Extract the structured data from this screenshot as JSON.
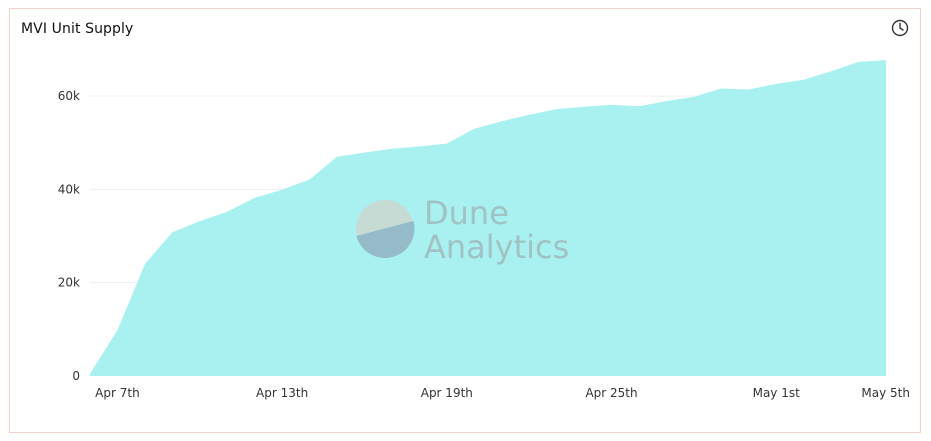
{
  "header": {
    "title": "MVI Unit Supply",
    "history_icon": "clock-icon"
  },
  "watermark": {
    "line1": "Dune",
    "line2": "Analytics"
  },
  "colors": {
    "area": "#a8f1f0",
    "border": "#f3d2c8",
    "grid": "#efefef"
  },
  "chart_data": {
    "type": "area",
    "title": "MVI Unit Supply",
    "xlabel": "",
    "ylabel": "",
    "grid": true,
    "legend": "none",
    "x": [
      "2021-04-06",
      "2021-04-07",
      "2021-04-08",
      "2021-04-09",
      "2021-04-10",
      "2021-04-11",
      "2021-04-12",
      "2021-04-13",
      "2021-04-14",
      "2021-04-15",
      "2021-04-16",
      "2021-04-17",
      "2021-04-18",
      "2021-04-19",
      "2021-04-20",
      "2021-04-21",
      "2021-04-22",
      "2021-04-23",
      "2021-04-24",
      "2021-04-25",
      "2021-04-26",
      "2021-04-27",
      "2021-04-28",
      "2021-04-29",
      "2021-04-30",
      "2021-05-01",
      "2021-05-02",
      "2021-05-03",
      "2021-05-04",
      "2021-05-05"
    ],
    "values": [
      500,
      9800,
      24000,
      30800,
      33200,
      35200,
      38200,
      39900,
      42100,
      47000,
      47900,
      48700,
      49200,
      49800,
      53000,
      54600,
      56000,
      57200,
      57700,
      58100,
      57800,
      58900,
      59800,
      61600,
      61400,
      62600,
      63500,
      65300,
      67300,
      67700
    ],
    "x_ticks": [
      {
        "label": "Apr 7th",
        "x": "2021-04-07"
      },
      {
        "label": "Apr 13th",
        "x": "2021-04-13"
      },
      {
        "label": "Apr 19th",
        "x": "2021-04-19"
      },
      {
        "label": "Apr 25th",
        "x": "2021-04-25"
      },
      {
        "label": "May 1st",
        "x": "2021-05-01"
      },
      {
        "label": "May 5th",
        "x": "2021-05-05"
      }
    ],
    "y_ticks": [
      {
        "label": "0",
        "value": 0
      },
      {
        "label": "20k",
        "value": 20000
      },
      {
        "label": "40k",
        "value": 40000
      },
      {
        "label": "60k",
        "value": 60000
      }
    ],
    "ylim": [
      0,
      72000
    ]
  }
}
